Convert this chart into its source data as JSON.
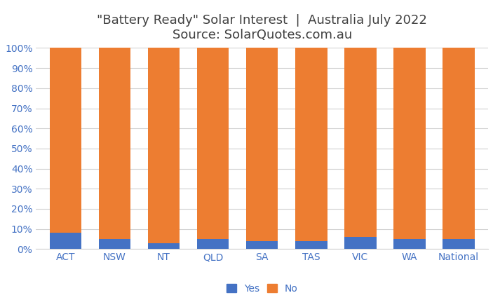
{
  "categories": [
    "ACT",
    "NSW",
    "NT",
    "QLD",
    "SA",
    "TAS",
    "VIC",
    "WA",
    "National"
  ],
  "yes_values": [
    8,
    5,
    3,
    5,
    4,
    4,
    6,
    5,
    5
  ],
  "no_values": [
    92,
    95,
    97,
    95,
    96,
    96,
    94,
    95,
    95
  ],
  "yes_color": "#4472C4",
  "no_color": "#ED7D31",
  "title_line1": "\"Battery Ready\" Solar Interest  |  Australia July 2022",
  "title_line2": "Source: SolarQuotes.com.au",
  "ylim": [
    0,
    100
  ],
  "ytick_labels": [
    "0%",
    "10%",
    "20%",
    "30%",
    "40%",
    "50%",
    "60%",
    "70%",
    "80%",
    "90%",
    "100%"
  ],
  "ytick_values": [
    0,
    10,
    20,
    30,
    40,
    50,
    60,
    70,
    80,
    90,
    100
  ],
  "legend_yes": "Yes",
  "legend_no": "No",
  "background_color": "#ffffff",
  "grid_color": "#d0d0d0",
  "bar_width": 0.65,
  "title_fontsize": 13,
  "tick_fontsize": 10,
  "legend_fontsize": 10,
  "title_color": "#404040",
  "tick_color": "#4472C4"
}
